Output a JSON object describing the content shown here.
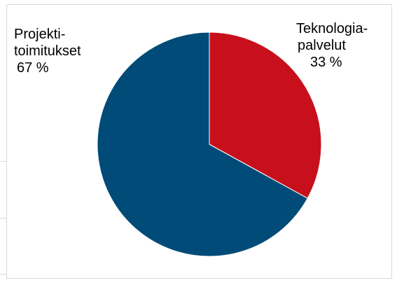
{
  "chart_data": {
    "type": "pie",
    "slices": [
      {
        "name_line1": "Teknologia-",
        "name_line2": "palvelut",
        "value_label": "33 %",
        "value": 33,
        "color": "#c8101c"
      },
      {
        "name_line1": "Projekti-",
        "name_line2": "toimitukset",
        "value_label": "67 %",
        "value": 67,
        "color": "#004b78"
      }
    ],
    "start_angle": "12 o'clock",
    "direction": "clockwise",
    "legend": "none (labels next to slices)"
  }
}
